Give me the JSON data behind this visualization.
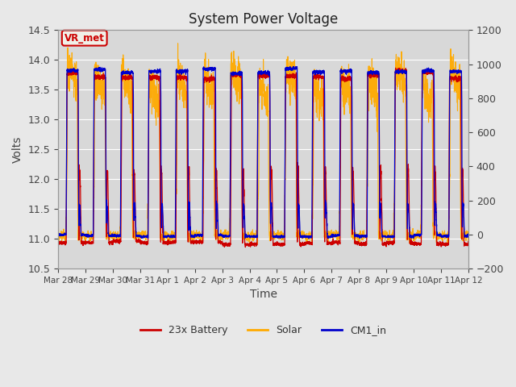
{
  "title": "System Power Voltage",
  "xlabel": "Time",
  "ylabel": "Volts",
  "ylim_left": [
    10.5,
    14.5
  ],
  "ylim_right": [
    -200,
    1200
  ],
  "yticks_left": [
    10.5,
    11.0,
    11.5,
    12.0,
    12.5,
    13.0,
    13.5,
    14.0,
    14.5
  ],
  "yticks_right": [
    -200,
    0,
    200,
    400,
    600,
    800,
    1000,
    1200
  ],
  "legend_labels": [
    "23x Battery",
    "Solar",
    "CM1_in"
  ],
  "color_battery": "#cc0000",
  "color_solar": "#ffaa00",
  "color_cm1": "#0000cc",
  "annotation_text": "VR_met",
  "annotation_color": "#cc0000",
  "background_color": "#e8e8e8",
  "plot_bg_color": "#d8d8d8",
  "grid_color": "#bbbbbb",
  "xticklabels": [
    "Mar 28",
    "Mar 29",
    "Mar 30",
    "Mar 31",
    "Apr 1",
    "Apr 2",
    "Apr 3",
    "Apr 4",
    "Apr 5",
    "Apr 6",
    "Apr 7",
    "Apr 8",
    "Apr 9",
    "Apr 10",
    "Apr 11",
    "Apr 12"
  ],
  "num_days": 15,
  "pts_per_day": 288
}
